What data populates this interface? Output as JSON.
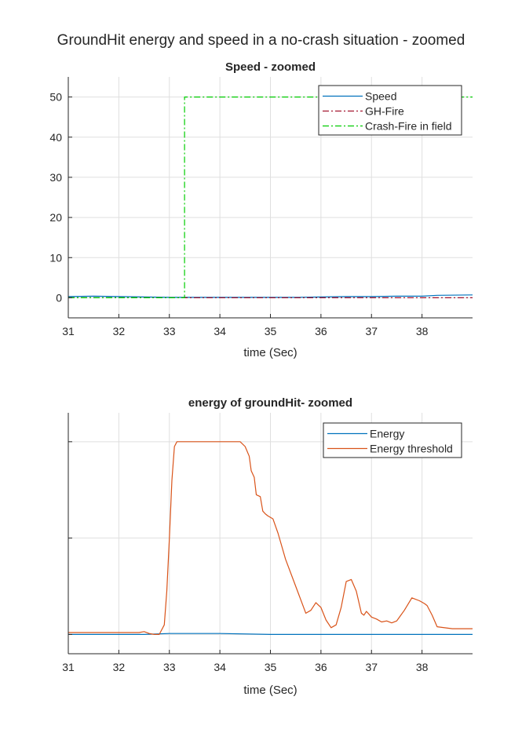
{
  "figure": {
    "title": "GroundHit energy and speed in a no-crash situation - zoomed"
  },
  "chart_data": [
    {
      "type": "line",
      "title": "Speed - zoomed",
      "xlabel": "time (Sec)",
      "ylabel": "",
      "xlim": [
        31,
        39
      ],
      "ylim": [
        -5,
        55
      ],
      "xticks": [
        31,
        32,
        33,
        34,
        35,
        36,
        37,
        38
      ],
      "yticks": [
        0,
        10,
        20,
        30,
        40,
        50
      ],
      "grid": true,
      "legend_position": "top-right",
      "series": [
        {
          "name": "Speed",
          "color": "#0072BD",
          "style": "solid",
          "x": [
            31,
            31.5,
            32,
            32.5,
            33,
            33.5,
            34,
            34.5,
            35,
            35.5,
            36,
            36.5,
            37,
            37.5,
            38,
            38.3,
            39
          ],
          "y": [
            0.3,
            0.4,
            0.3,
            0.2,
            0.1,
            0.1,
            0.1,
            0.1,
            0.1,
            0.1,
            0.2,
            0.3,
            0.3,
            0.4,
            0.4,
            0.6,
            0.7
          ]
        },
        {
          "name": "GH-Fire",
          "color": "#A2142F",
          "style": "dashdot",
          "x": [
            31,
            39
          ],
          "y": [
            0,
            0
          ]
        },
        {
          "name": "Crash-Fire in field",
          "color": "#00CC00",
          "style": "dashdot",
          "x": [
            31,
            33.3,
            33.3,
            39
          ],
          "y": [
            0,
            0,
            50,
            50
          ]
        }
      ]
    },
    {
      "type": "line",
      "title": "energy of groundHit- zoomed",
      "xlabel": "time (Sec)",
      "ylabel": "",
      "xlim": [
        31,
        39
      ],
      "ylim": [
        -0.2,
        2.3
      ],
      "xticks": [
        31,
        32,
        33,
        34,
        35,
        36,
        37,
        38
      ],
      "yticks": [
        0,
        1,
        2
      ],
      "ytick_labels_visible": false,
      "grid": true,
      "legend_position": "top-right",
      "series": [
        {
          "name": "Energy",
          "color": "#0072BD",
          "style": "solid",
          "x": [
            31,
            32,
            32.5,
            33,
            34,
            35,
            36,
            37,
            38,
            39
          ],
          "y": [
            0.0,
            0.0,
            0.0,
            0.01,
            0.01,
            0.0,
            0.0,
            0.0,
            0.0,
            0.0
          ]
        },
        {
          "name": "Energy threshold",
          "color": "#D95319",
          "style": "solid",
          "x": [
            31,
            32.4,
            32.5,
            32.6,
            32.7,
            32.8,
            32.9,
            32.95,
            33.0,
            33.05,
            33.1,
            33.15,
            33.2,
            34.4,
            34.5,
            34.58,
            34.62,
            34.68,
            34.72,
            34.8,
            34.85,
            34.9,
            34.95,
            35.05,
            35.15,
            35.3,
            35.5,
            35.7,
            35.8,
            35.9,
            36.0,
            36.1,
            36.2,
            36.3,
            36.4,
            36.5,
            36.6,
            36.7,
            36.8,
            36.85,
            36.9,
            37.0,
            37.1,
            37.2,
            37.3,
            37.4,
            37.5,
            37.65,
            37.8,
            37.95,
            38.05,
            38.1,
            38.2,
            38.3,
            38.6,
            39.0
          ],
          "y": [
            0.02,
            0.02,
            0.03,
            0.01,
            0.0,
            0.0,
            0.1,
            0.45,
            1.0,
            1.6,
            1.95,
            2.0,
            2.0,
            2.0,
            1.95,
            1.85,
            1.7,
            1.63,
            1.45,
            1.43,
            1.28,
            1.25,
            1.23,
            1.2,
            1.05,
            0.78,
            0.5,
            0.22,
            0.25,
            0.33,
            0.28,
            0.15,
            0.07,
            0.1,
            0.28,
            0.55,
            0.57,
            0.45,
            0.22,
            0.2,
            0.24,
            0.18,
            0.16,
            0.13,
            0.14,
            0.12,
            0.14,
            0.25,
            0.38,
            0.35,
            0.32,
            0.3,
            0.2,
            0.08,
            0.06,
            0.06
          ]
        }
      ]
    }
  ]
}
